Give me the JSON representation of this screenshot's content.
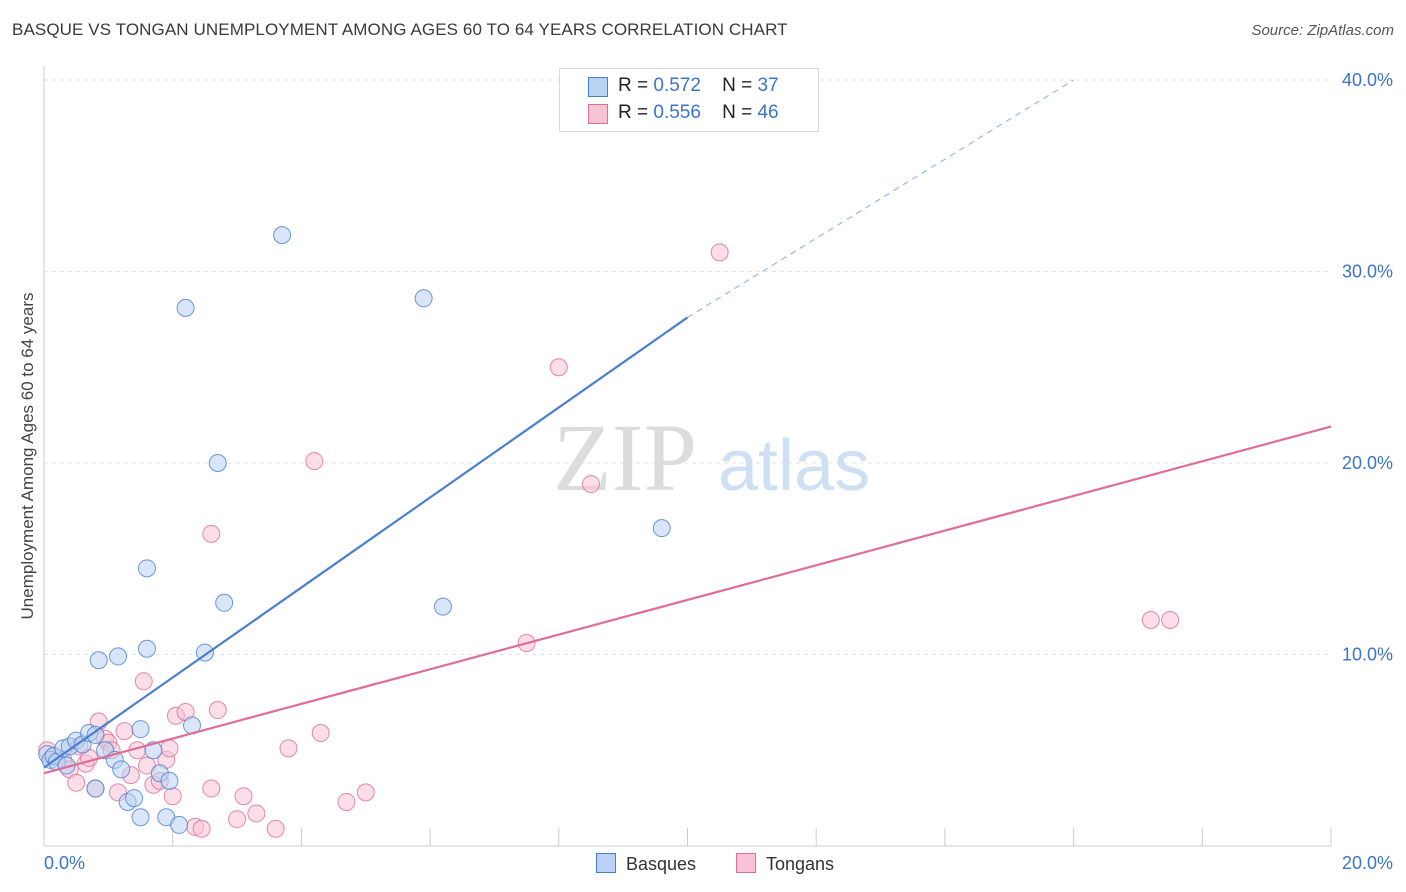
{
  "header": {
    "title": "BASQUE VS TONGAN UNEMPLOYMENT AMONG AGES 60 TO 64 YEARS CORRELATION CHART",
    "source": "Source: ZipAtlas.com"
  },
  "watermark": {
    "part1": "ZIP",
    "part2": "atlas"
  },
  "legend": {
    "rows": [
      {
        "r_label": "R =",
        "r_value": "0.572",
        "n_label": "N =",
        "n_value": "37"
      },
      {
        "r_label": "R =",
        "r_value": "0.556",
        "n_label": "N =",
        "n_value": "46"
      }
    ]
  },
  "bottom_legend": {
    "basques": "Basques",
    "tongans": "Tongans"
  },
  "chart_data": {
    "type": "scatter",
    "title": "BASQUE VS TONGAN UNEMPLOYMENT AMONG AGES 60 TO 64 YEARS CORRELATION CHART",
    "xlabel": "",
    "ylabel": "Unemployment Among Ages 60 to 64 years",
    "xlim": [
      0,
      20
    ],
    "ylim": [
      0,
      40
    ],
    "x_tick_labels": [
      "0.0%",
      "20.0%"
    ],
    "y_ticks": [
      10,
      20,
      30,
      40
    ],
    "y_tick_labels": [
      "10.0%",
      "20.0%",
      "30.0%",
      "40.0%"
    ],
    "grid": true,
    "legend_placement": "top-center",
    "colors": {
      "basques": "#4a7fd0",
      "tongans": "#e06c98",
      "basques_fill": "#b9d2f3",
      "tongans_fill": "#f7c3d5"
    },
    "series": [
      {
        "name": "Basques",
        "points": [
          [
            0.05,
            4.8
          ],
          [
            0.1,
            4.5
          ],
          [
            0.15,
            4.7
          ],
          [
            0.2,
            4.4
          ],
          [
            0.3,
            5.1
          ],
          [
            0.4,
            5.2
          ],
          [
            0.5,
            5.5
          ],
          [
            0.6,
            5.3
          ],
          [
            0.7,
            5.9
          ],
          [
            0.8,
            5.8
          ],
          [
            0.8,
            3.0
          ],
          [
            0.85,
            9.7
          ],
          [
            0.95,
            5.0
          ],
          [
            1.1,
            4.5
          ],
          [
            1.15,
            9.9
          ],
          [
            1.2,
            4.0
          ],
          [
            1.3,
            2.3
          ],
          [
            1.4,
            2.5
          ],
          [
            1.5,
            1.5
          ],
          [
            1.5,
            6.1
          ],
          [
            1.6,
            10.3
          ],
          [
            1.6,
            14.5
          ],
          [
            1.7,
            5.0
          ],
          [
            1.8,
            3.8
          ],
          [
            1.9,
            1.5
          ],
          [
            1.95,
            3.4
          ],
          [
            2.1,
            1.1
          ],
          [
            2.2,
            28.1
          ],
          [
            2.3,
            6.3
          ],
          [
            2.5,
            10.1
          ],
          [
            2.7,
            20.0
          ],
          [
            2.8,
            12.7
          ],
          [
            3.7,
            31.9
          ],
          [
            5.9,
            28.6
          ],
          [
            6.2,
            12.5
          ],
          [
            9.6,
            16.6
          ],
          [
            0.35,
            4.2
          ]
        ],
        "trend": {
          "x": [
            0,
            10
          ],
          "y": [
            4.1,
            27.6
          ]
        },
        "trend_extension": {
          "x": [
            10,
            16
          ],
          "y": [
            27.6,
            40.0
          ]
        }
      },
      {
        "name": "Tongans",
        "points": [
          [
            0.05,
            5.0
          ],
          [
            0.15,
            4.7
          ],
          [
            0.3,
            4.5
          ],
          [
            0.4,
            4.0
          ],
          [
            0.5,
            3.3
          ],
          [
            0.55,
            5.2
          ],
          [
            0.65,
            4.3
          ],
          [
            0.7,
            4.6
          ],
          [
            0.8,
            3.0
          ],
          [
            0.85,
            6.5
          ],
          [
            0.95,
            5.6
          ],
          [
            1.0,
            5.4
          ],
          [
            1.05,
            5.0
          ],
          [
            1.15,
            2.8
          ],
          [
            1.25,
            6.0
          ],
          [
            1.35,
            3.7
          ],
          [
            1.45,
            5.0
          ],
          [
            1.55,
            8.6
          ],
          [
            1.6,
            4.2
          ],
          [
            1.7,
            3.2
          ],
          [
            1.8,
            3.4
          ],
          [
            1.9,
            4.5
          ],
          [
            1.95,
            5.1
          ],
          [
            2.0,
            2.6
          ],
          [
            2.05,
            6.8
          ],
          [
            2.2,
            7.0
          ],
          [
            2.35,
            1.0
          ],
          [
            2.45,
            0.9
          ],
          [
            2.6,
            3.0
          ],
          [
            2.6,
            16.3
          ],
          [
            2.7,
            7.1
          ],
          [
            3.0,
            1.4
          ],
          [
            3.1,
            2.6
          ],
          [
            3.3,
            1.7
          ],
          [
            3.6,
            0.9
          ],
          [
            3.8,
            5.1
          ],
          [
            4.2,
            20.1
          ],
          [
            4.3,
            5.9
          ],
          [
            4.7,
            2.3
          ],
          [
            5.0,
            2.8
          ],
          [
            7.5,
            10.6
          ],
          [
            8.0,
            25.0
          ],
          [
            8.5,
            18.9
          ],
          [
            10.5,
            31.0
          ],
          [
            17.2,
            11.8
          ],
          [
            17.5,
            11.8
          ]
        ],
        "trend": {
          "x": [
            0,
            20
          ],
          "y": [
            3.8,
            21.9
          ]
        }
      }
    ]
  }
}
